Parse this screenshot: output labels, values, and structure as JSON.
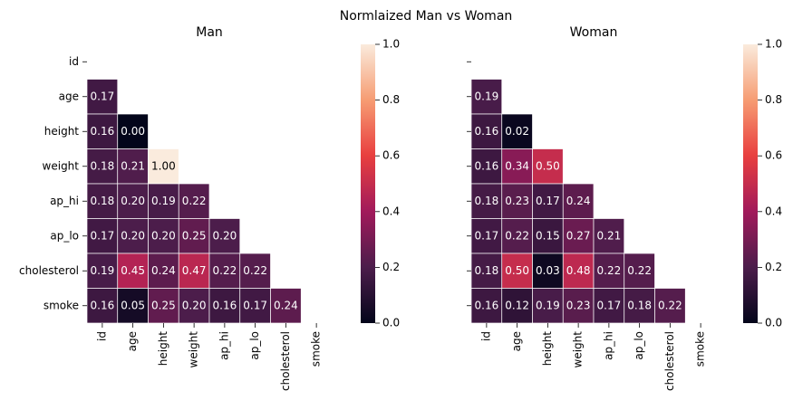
{
  "title": "Normlaized Man vs Woman",
  "chart_data": [
    {
      "type": "heatmap",
      "title": "Man",
      "colormap": "rocket",
      "x_categories": [
        "id",
        "age",
        "height",
        "weight",
        "ap_hi",
        "ap_lo",
        "cholesterol",
        "smoke"
      ],
      "y_categories": [
        "id",
        "age",
        "height",
        "weight",
        "ap_hi",
        "ap_lo",
        "cholesterol",
        "smoke"
      ],
      "values": [
        [
          null,
          null,
          null,
          null,
          null,
          null,
          null,
          null
        ],
        [
          0.17,
          null,
          null,
          null,
          null,
          null,
          null,
          null
        ],
        [
          0.16,
          0,
          null,
          null,
          null,
          null,
          null,
          null
        ],
        [
          0.18,
          0.21,
          1,
          null,
          null,
          null,
          null,
          null
        ],
        [
          0.18,
          0.2,
          0.19,
          0.22,
          null,
          null,
          null,
          null
        ],
        [
          0.17,
          0.2,
          0.2,
          0.25,
          0.2,
          null,
          null,
          null
        ],
        [
          0.19,
          0.45,
          0.24,
          0.47,
          0.22,
          0.22,
          null,
          null
        ],
        [
          0.16,
          0.05,
          0.25,
          0.2,
          0.16,
          0.17,
          0.24,
          null
        ]
      ],
      "value_labels": [
        [
          null,
          null,
          null,
          null,
          null,
          null,
          null,
          null
        ],
        [
          "0.17",
          null,
          null,
          null,
          null,
          null,
          null,
          null
        ],
        [
          "0.16",
          "0.00",
          null,
          null,
          null,
          null,
          null,
          null
        ],
        [
          "0.18",
          "0.21",
          "1.00",
          null,
          null,
          null,
          null,
          null
        ],
        [
          "0.18",
          "0.20",
          "0.19",
          "0.22",
          null,
          null,
          null,
          null
        ],
        [
          "0.17",
          "0.20",
          "0.20",
          "0.25",
          "0.20",
          null,
          null,
          null
        ],
        [
          "0.19",
          "0.45",
          "0.24",
          "0.47",
          "0.22",
          "0.22",
          null,
          null
        ],
        [
          "0.16",
          "0.05",
          "0.25",
          "0.20",
          "0.16",
          "0.17",
          "0.24",
          null
        ]
      ],
      "clim": [
        0,
        1
      ],
      "cticks": [
        {
          "value": 0,
          "label": "0.0"
        },
        {
          "value": 0.2,
          "label": "0.2"
        },
        {
          "value": 0.4,
          "label": "0.4"
        },
        {
          "value": 0.6,
          "label": "0.6"
        },
        {
          "value": 0.8,
          "label": "0.8"
        },
        {
          "value": 1,
          "label": "1.0"
        }
      ]
    },
    {
      "type": "heatmap",
      "title": "Woman",
      "colormap": "rocket",
      "x_categories": [
        "id",
        "age",
        "height",
        "weight",
        "ap_hi",
        "ap_lo",
        "cholesterol",
        "smoke"
      ],
      "values": [
        [
          null,
          null,
          null,
          null,
          null,
          null,
          null,
          null
        ],
        [
          0.19,
          null,
          null,
          null,
          null,
          null,
          null,
          null
        ],
        [
          0.16,
          0.02,
          null,
          null,
          null,
          null,
          null,
          null
        ],
        [
          0.16,
          0.34,
          0.5,
          null,
          null,
          null,
          null,
          null
        ],
        [
          0.18,
          0.23,
          0.17,
          0.24,
          null,
          null,
          null,
          null
        ],
        [
          0.17,
          0.22,
          0.15,
          0.27,
          0.21,
          null,
          null,
          null
        ],
        [
          0.18,
          0.5,
          0.03,
          0.48,
          0.22,
          0.22,
          null,
          null
        ],
        [
          0.16,
          0.12,
          0.19,
          0.23,
          0.17,
          0.18,
          0.22,
          null
        ]
      ],
      "value_labels": [
        [
          null,
          null,
          null,
          null,
          null,
          null,
          null,
          null
        ],
        [
          "0.19",
          null,
          null,
          null,
          null,
          null,
          null,
          null
        ],
        [
          "0.16",
          "0.02",
          null,
          null,
          null,
          null,
          null,
          null
        ],
        [
          "0.16",
          "0.34",
          "0.50",
          null,
          null,
          null,
          null,
          null
        ],
        [
          "0.18",
          "0.23",
          "0.17",
          "0.24",
          null,
          null,
          null,
          null
        ],
        [
          "0.17",
          "0.22",
          "0.15",
          "0.27",
          "0.21",
          null,
          null,
          null
        ],
        [
          "0.18",
          "0.50",
          "0.03",
          "0.48",
          "0.22",
          "0.22",
          null,
          null
        ],
        [
          "0.16",
          "0.12",
          "0.19",
          "0.23",
          "0.17",
          "0.18",
          "0.22",
          null
        ]
      ],
      "clim": [
        0,
        1
      ],
      "cticks": [
        {
          "value": 0,
          "label": "0.0"
        },
        {
          "value": 0.2,
          "label": "0.2"
        },
        {
          "value": 0.4,
          "label": "0.4"
        },
        {
          "value": 0.6,
          "label": "0.6"
        },
        {
          "value": 0.8,
          "label": "0.8"
        },
        {
          "value": 1,
          "label": "1.0"
        }
      ]
    }
  ]
}
